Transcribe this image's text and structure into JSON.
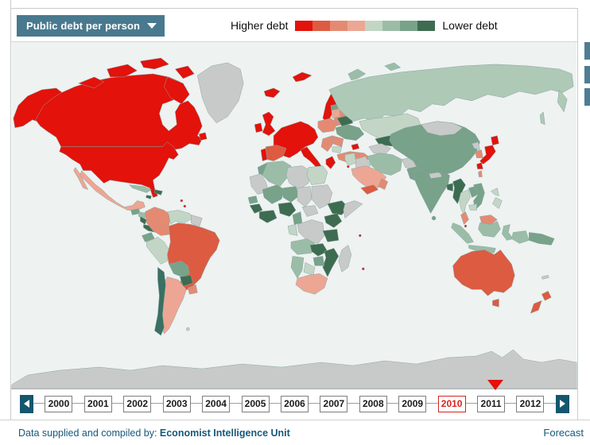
{
  "header": {
    "dropdown": {
      "label": "Public debt per person",
      "icon": "triangle-down-icon",
      "bg_color": "#48798e"
    },
    "legend": {
      "higher_label": "Higher debt",
      "lower_label": "Lower debt",
      "colors": [
        "#e3120b",
        "#dd5b41",
        "#e58a72",
        "#eda693",
        "#c3d6c5",
        "#9bbda7",
        "#78a289",
        "#3e6c50"
      ]
    }
  },
  "side_buttons": {
    "count": 3,
    "color": "#4e7d92"
  },
  "map": {
    "ocean_color": "#eef2f1",
    "no_data_color": "#c8cac9",
    "border_color": "#8aa6a6",
    "countries": {
      "canada": "#e3120b",
      "alaska": "#e3120b",
      "usa": "#e3120b",
      "newfoundland": "#e3120b",
      "greenland": "#c8cac9",
      "mexico": "#eda693",
      "guatemala": "#78a289",
      "honduras": "#9bbda7",
      "nicaragua": "#3e6c50",
      "panama": "#3e6c50",
      "cuba": "#9bbda7",
      "hispaniola": "#3e6c50",
      "jamaica": "#3e6c50",
      "caribbean-islands": "#e3120b",
      "colombia": "#e58a72",
      "venezuela": "#c3d6c5",
      "guyanas": "#c8cac9",
      "ecuador": "#78a289",
      "peru": "#c3d6c5",
      "brazil": "#dd5b41",
      "bolivia": "#78a289",
      "paraguay": "#3e6c50",
      "uruguay": "#e58a72",
      "argentina": "#eda693",
      "chile": "#3a6f63",
      "falklands": "#c8cac9",
      "iceland": "#e3120b",
      "svalbard": "#e3120b",
      "uk": "#e3120b",
      "ireland": "#e3120b",
      "norway": "#e3120b",
      "sweden": "#e58a72",
      "finland": "#e58a72",
      "denmark": "#e3120b",
      "west-europe": "#e3120b",
      "portugal": "#e3120b",
      "spain": "#dd5b41",
      "italy": "#e3120b",
      "greece": "#e3120b",
      "poland": "#e58a72",
      "baltics": "#eda693",
      "estonia": "#78a289",
      "belarus": "#3e6c50",
      "ukraine": "#78a289",
      "romania": "#e58a72",
      "balkans": "#e58a72",
      "bulgaria": "#c3d6c5",
      "turkey": "#e58a72",
      "cyprus": "#e3120b",
      "caucasus": "#e3120b",
      "russia": "#aec9b6",
      "novaya-zemlya": "#9bbda7",
      "severnaya-zemlya": "#9bbda7",
      "kazakhstan": "#c3d6c5",
      "uzbekistan": "#3e6c50",
      "turkmenistan": "#c8cac9",
      "iran": "#9bbda7",
      "iraq": "#c8cac9",
      "levant": "#c3d6c5",
      "saudi-arabia": "#eda693",
      "yemen": "#dd5b41",
      "oman": "#e58a72",
      "afghanistan": "#c8cac9",
      "pakistan": "#78a289",
      "india": "#78a289",
      "sri-lanka": "#78a289",
      "nepal": "#c8cac9",
      "bangladesh": "#3e6c50",
      "myanmar": "#3e6c50",
      "thailand": "#c3d6c5",
      "vietnam": "#78a289",
      "laos": "#78a289",
      "cambodia": "#c3d6c5",
      "malaysia": "#e58a72",
      "singapore": "#e3120b",
      "sumatra": "#9bbda7",
      "java": "#9bbda7",
      "borneo-malaysia": "#e58a72",
      "borneo-indonesia": "#9bbda7",
      "sulawesi": "#9bbda7",
      "philippines": "#c3d6c5",
      "west-papua": "#9bbda7",
      "papua-new-guinea": "#78a289",
      "china": "#78a289",
      "mongolia": "#c8cac9",
      "north-korea": "#c8cac9",
      "south-korea": "#e58a72",
      "japan": "#e3120b",
      "taiwan": "#e58a72",
      "australia": "#dd5b41",
      "tasmania": "#dd5b41",
      "new-zealand": "#dd5b41",
      "fiji": "#c8cac9",
      "morocco": "#78a289",
      "mauritania": "#c8cac9",
      "algeria": "#9bbda7",
      "libya": "#c8cac9",
      "egypt": "#c3d6c5",
      "mali": "#78a289",
      "niger": "#78a289",
      "chad": "#c8cac9",
      "sudan": "#c8cac9",
      "senegal": "#78a289",
      "guinea": "#3e6c50",
      "ghana-ivory": "#3e6c50",
      "nigeria": "#3e6c50",
      "cameroon": "#78a289",
      "car": "#c8cac9",
      "ethiopia": "#3e6c50",
      "somalia": "#c8cac9",
      "kenya-uganda": "#3e6c50",
      "drc": "#c8cac9",
      "gabon-congo": "#c3d6c5",
      "tanzania": "#3e6c50",
      "angola": "#9bbda7",
      "zambia": "#3e6c50",
      "mozambique": "#3e6c50",
      "zimbabwe": "#78a289",
      "botswana": "#c3d6c5",
      "namibia": "#9bbda7",
      "south-africa": "#eda693",
      "madagascar": "#c8cac9",
      "mauritius": "#e3120b",
      "comoros": "#e3120b",
      "antarctica": "#c8cac9"
    }
  },
  "timeline": {
    "years": [
      "2000",
      "2001",
      "2002",
      "2003",
      "2004",
      "2005",
      "2006",
      "2007",
      "2008",
      "2009",
      "2010",
      "2011",
      "2012"
    ],
    "selected_year": "2010",
    "selected_color": "#d6241e",
    "marker_color": "#e3120b",
    "arrow_button_color": "#15566f",
    "left_arrow_icon": "triangle-left-icon",
    "right_arrow_icon": "triangle-right-icon"
  },
  "footer": {
    "credit_prefix": "Data supplied and compiled by: ",
    "credit_source": "Economist Intelligence Unit",
    "forecast_label": "Forecast"
  }
}
